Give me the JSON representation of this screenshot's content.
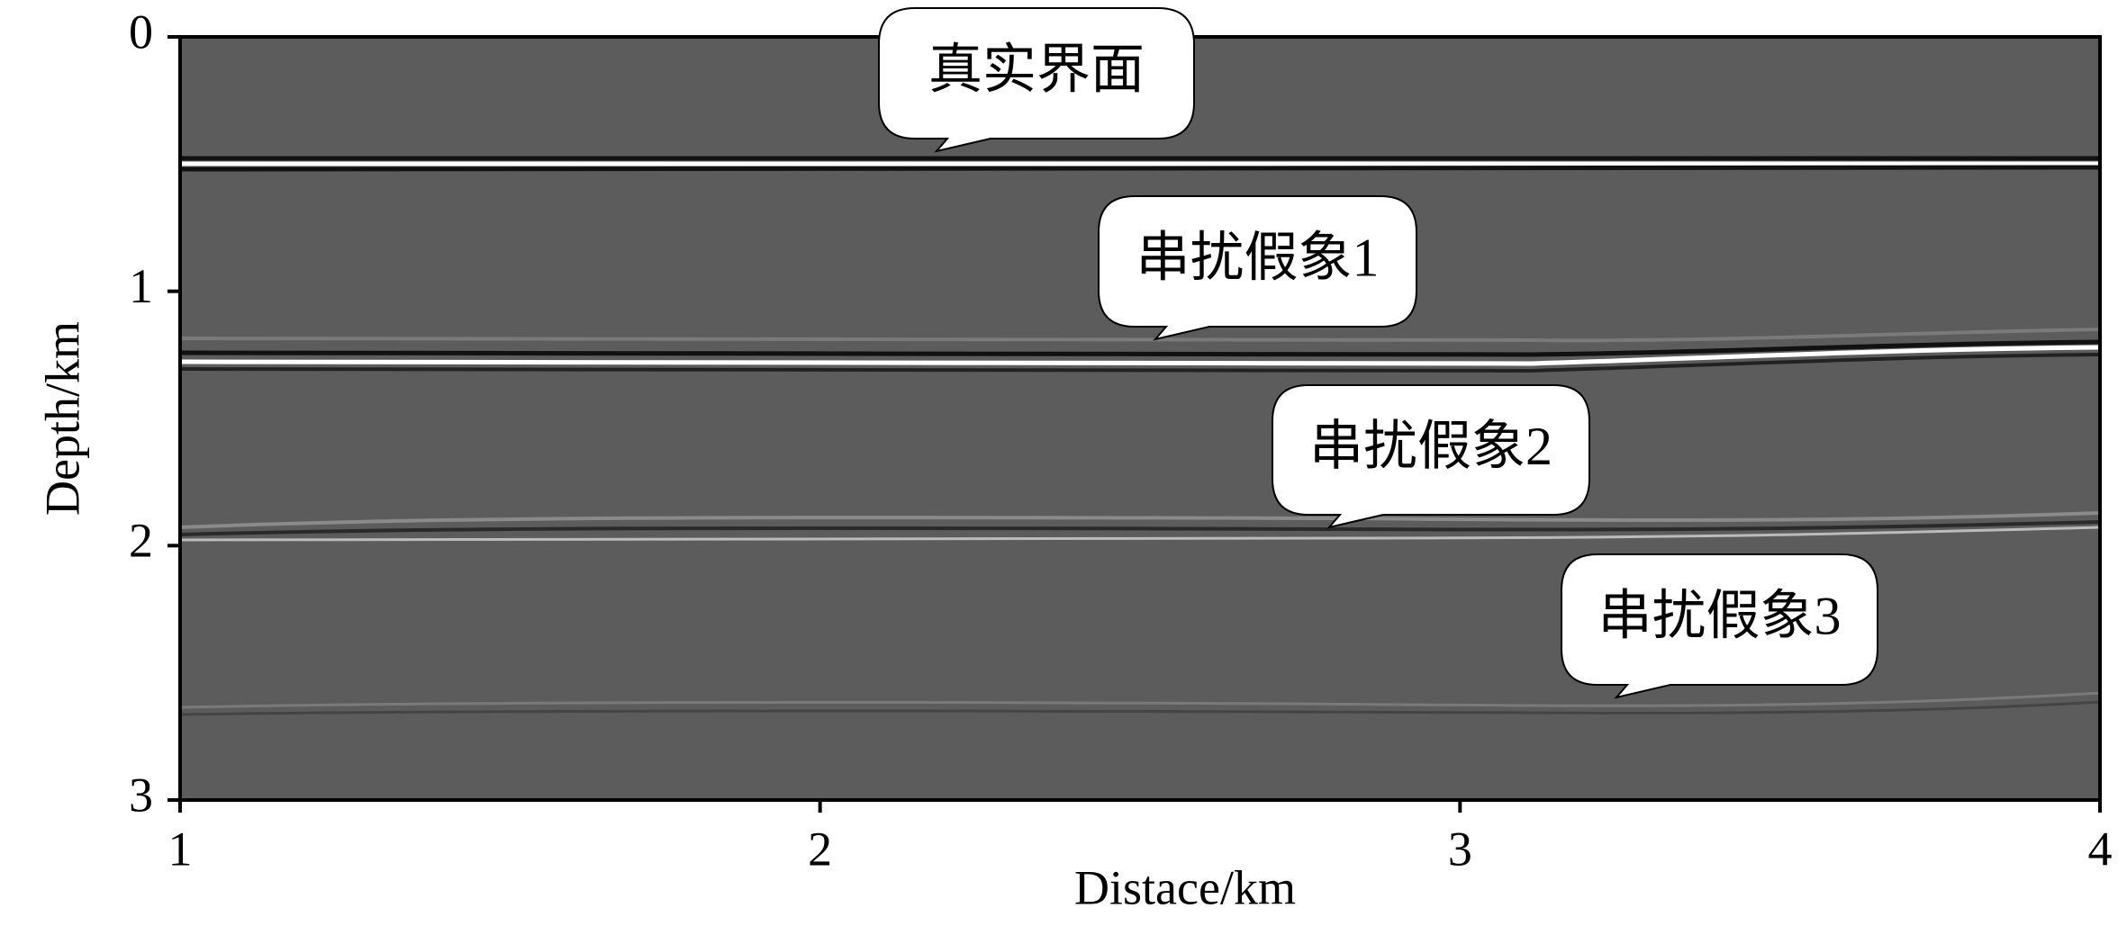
{
  "chart_data": {
    "type": "image",
    "xlabel": "Distace/km",
    "ylabel": "Depth/km",
    "xlim": [
      1,
      4
    ],
    "xticks": [
      1,
      2,
      3,
      4
    ],
    "ylim": [
      0,
      3
    ],
    "yticks": [
      0,
      1,
      2,
      3
    ],
    "y_inverted": true,
    "annotations": [
      "真实界面",
      "串扰假象1",
      "串扰假象2",
      "串扰假象3"
    ]
  }
}
